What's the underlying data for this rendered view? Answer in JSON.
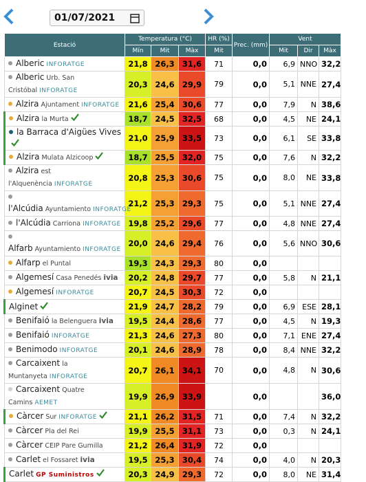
{
  "date": "01/07/2021",
  "table": {
    "header": {
      "station": "Estació",
      "temperature": "Temperatura (°C)",
      "humidity": "HR (%)",
      "precipitation": "Prec. (mm)",
      "wind": "Vent",
      "temp_min": "Mín",
      "temp_mean": "Mit",
      "temp_max": "Màx",
      "hr_mean": "Mit",
      "wind_mean": "Mit",
      "wind_dir": "Dir",
      "wind_max": "Màx"
    },
    "rows": [
      {
        "dot": "#9a9a9a",
        "name": "Alberic",
        "tag": "INFORATGE",
        "min": "21,8",
        "mean": "26,3",
        "max": "31,6",
        "hr": "71",
        "prec": "0,0",
        "wmean": "6,9",
        "wdir": "NNO",
        "wmax": "32,2"
      },
      {
        "dot": "#9a9a9a",
        "name": "Alberic",
        "place": "Urb. San Cristóbal",
        "tag": "INFORATGE",
        "min": "20,3",
        "mean": "24,6",
        "max": "29,9",
        "hr": "79",
        "prec": "0,0",
        "wmean": "5,1",
        "wdir": "NNE",
        "wmax": "27,4"
      },
      {
        "dot": "#e8ab3a",
        "name": "Alzira",
        "place": "Ajuntament",
        "tag": "INFORATGE",
        "min": "21,6",
        "mean": "25,4",
        "max": "30,6",
        "hr": "77",
        "prec": "0,0",
        "wmean": "7,9",
        "wdir": "N",
        "wmax": "38,6"
      },
      {
        "dot": "#e8ab3a",
        "name": "Alzira",
        "place": "la Murta",
        "verified": true,
        "min": "18,7",
        "mean": "24,5",
        "max": "32,5",
        "hr": "68",
        "prec": "0,0",
        "wmean": "4,5",
        "wdir": "NE",
        "wmax": "24,1"
      },
      {
        "dot": "#1b5e6e",
        "name": "la Barraca d'Aigües Vives",
        "verified": true,
        "min": "21,0",
        "mean": "25,9",
        "max": "33,5",
        "hr": "73",
        "prec": "0,0",
        "wmean": "6,1",
        "wdir": "SE",
        "wmax": "33,8"
      },
      {
        "dot": "#e8ab3a",
        "name": "Alzira",
        "place": "Mulata Alzicoop",
        "verified": true,
        "min": "18,7",
        "mean": "25,5",
        "max": "32,0",
        "hr": "75",
        "prec": "0,0",
        "wmean": "7,6",
        "wdir": "N",
        "wmax": "32,2"
      },
      {
        "dot": "#9a9a9a",
        "name": "Alzira",
        "place": "est l'Alquenència",
        "tag": "INFORATGE",
        "min": "20,8",
        "mean": "25,3",
        "max": "30,6",
        "hr": "75",
        "prec": "0,0",
        "wmean": "8,0",
        "wdir": "NE",
        "wmax": "33,8"
      },
      {
        "dot": "#9a9a9a",
        "name": "l'Alcúdia",
        "place": "Ayuntamiento",
        "tag": "INFORATGE",
        "min": "21,2",
        "mean": "25,3",
        "max": "29,3",
        "hr": "75",
        "prec": "0,0",
        "wmean": "5,1",
        "wdir": "NNE",
        "wmax": "27,4"
      },
      {
        "dot": "#9a9a9a",
        "name": "l'Alcúdia",
        "place": "Carriona",
        "tag": "INFORATGE",
        "min": "19,8",
        "mean": "25,2",
        "max": "29,6",
        "hr": "77",
        "prec": "0,0",
        "wmean": "4,8",
        "wdir": "NNE",
        "wmax": "27,4"
      },
      {
        "dot": "#9a9a9a",
        "name": "Alfarb",
        "place": "Ayuntamiento",
        "tag": "INFORATGE",
        "min": "20,0",
        "mean": "24,6",
        "max": "29,4",
        "hr": "76",
        "prec": "0,0",
        "wmean": "5,6",
        "wdir": "NNO",
        "wmax": "30,6"
      },
      {
        "dot": "#e8ab3a",
        "name": "Alfarp",
        "place": "el Puntal",
        "min": "19,3",
        "mean": "24,3",
        "max": "29,3",
        "hr": "80",
        "prec": "0,0"
      },
      {
        "dot": "#9a9a9a",
        "name": "Algemesí",
        "place": "Casa Penedés",
        "tag": "ivia",
        "min": "20,2",
        "mean": "24,8",
        "max": "29,7",
        "hr": "77",
        "prec": "0,0",
        "wmean": "5,8",
        "wdir": "N",
        "wmax": "21,1"
      },
      {
        "dot": "#e8ab3a",
        "name": "Algemesí",
        "tag": "INFORATGE",
        "min": "20,7",
        "mean": "24,5",
        "max": "30,3",
        "hr": "72",
        "prec": "0,0"
      },
      {
        "name": "Alginet",
        "verified": true,
        "min": "21,9",
        "mean": "24,7",
        "max": "28,2",
        "hr": "79",
        "prec": "0,0",
        "wmean": "6,9",
        "wdir": "ESE",
        "wmax": "28,1"
      },
      {
        "dot": "#9a9a9a",
        "name": "Benifaió",
        "place": "la Belenguera",
        "tag": "ivia",
        "min": "19,5",
        "mean": "24,4",
        "max": "28,6",
        "hr": "77",
        "prec": "0,0",
        "wmean": "4,5",
        "wdir": "N",
        "wmax": "19,3"
      },
      {
        "dot": "#9a9a9a",
        "name": "Benifaió",
        "tag": "INFORATGE",
        "min": "21,3",
        "mean": "24,6",
        "max": "27,3",
        "hr": "80",
        "prec": "0,0",
        "wmean": "7,1",
        "wdir": "ENE",
        "wmax": "27,4"
      },
      {
        "dot": "#9a9a9a",
        "name": "Benimodo",
        "tag": "INFORATGE",
        "min": "20,1",
        "mean": "24,6",
        "max": "28,9",
        "hr": "78",
        "prec": "0,0",
        "wmean": "8,4",
        "wdir": "NNE",
        "wmax": "32,2"
      },
      {
        "dot": "#9a9a9a",
        "name": "Carcaixent",
        "place": "la Muntanyeta",
        "tag": "INFORATGE",
        "min": "20,7",
        "mean": "26,1",
        "max": "34,1",
        "hr": "70",
        "prec": "0,0",
        "wmean": "4,8",
        "wdir": "N",
        "wmax": "30,6"
      },
      {
        "dot": "#d0d0d0",
        "name": "Carcaixent",
        "place": "Quatre Camins",
        "tag": "AEMET",
        "min": "19,9",
        "mean": "26,9",
        "max": "33,9",
        "prec": "0,0",
        "wmax": "36,0"
      },
      {
        "dot": "#e8ab3a",
        "name": "Càrcer",
        "place": "Sur",
        "tag": "INFORATGE",
        "verified": true,
        "min": "21,1",
        "mean": "26,2",
        "max": "31,5",
        "hr": "71",
        "prec": "0,0",
        "wmean": "7,4",
        "wdir": "N",
        "wmax": "32,2"
      },
      {
        "dot": "#9a9a9a",
        "name": "Càrcer",
        "place": "Pla del Rei",
        "min": "19,9",
        "mean": "25,5",
        "max": "31,1",
        "hr": "73",
        "prec": "0,0",
        "wmean": "0,3",
        "wdir": "N",
        "wmax": "24,1"
      },
      {
        "dot": "#9a9a9a",
        "name": "Càrcer",
        "place": "CEIP Pare Gumilla",
        "min": "21,2",
        "mean": "26,4",
        "max": "31,9",
        "hr": "72",
        "prec": "0,0"
      },
      {
        "dot": "#9a9a9a",
        "name": "Carlet",
        "place": "el Fossaret",
        "tag": "ivia",
        "min": "19,5",
        "mean": "25,3",
        "max": "30,4",
        "hr": "74",
        "prec": "0,0",
        "wmean": "4,0",
        "wdir": "N",
        "wmax": "20,3"
      },
      {
        "name": "Carlet",
        "tag": "GP Suministros",
        "verified": true,
        "min": "20,3",
        "mean": "24,9",
        "max": "29,3",
        "hr": "72",
        "prec": "0,0",
        "wmean": "8,0",
        "wdir": "NE",
        "wmax": "31,4"
      }
    ]
  }
}
